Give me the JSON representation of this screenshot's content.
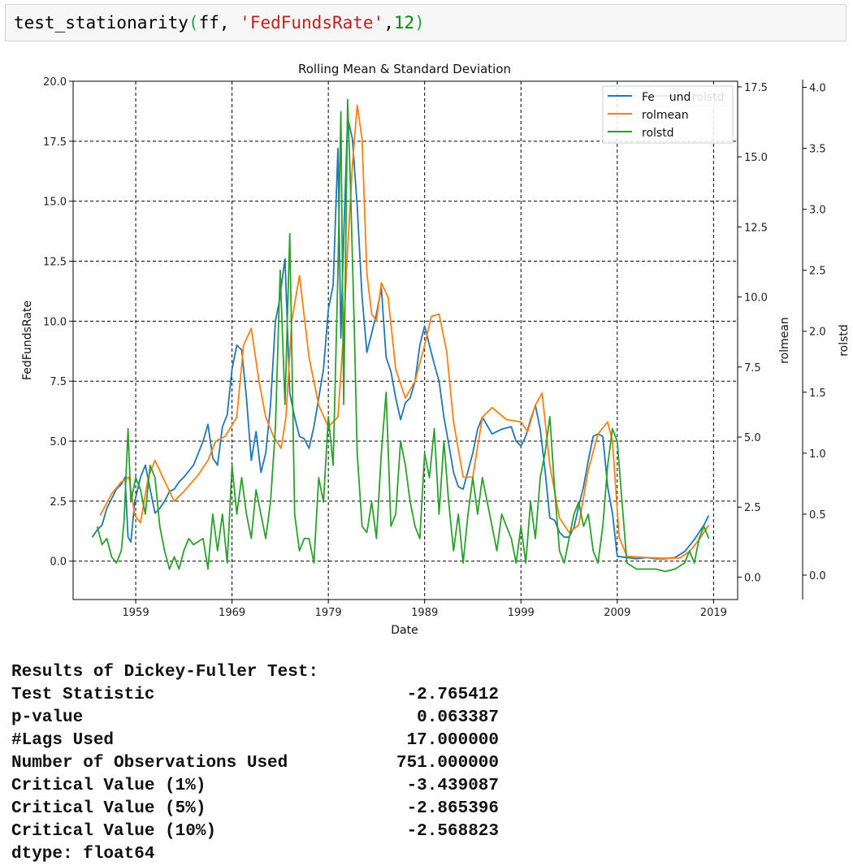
{
  "code": {
    "fn": "test_stationarity",
    "open": "(",
    "args_plain": "ff, ",
    "arg_str": "'FedFundsRate'",
    "comma": ",",
    "arg_num": "12",
    "close": ")"
  },
  "chart_data": {
    "type": "line",
    "title": "Rolling Mean & Standard Deviation",
    "xlabel": "Date",
    "x_ticks": [
      "1959",
      "1969",
      "1979",
      "1989",
      "1999",
      "2009",
      "2019"
    ],
    "xlim": [
      1952.5,
      2021.5
    ],
    "y_axes": [
      {
        "label": "FedFundsRate",
        "lim": [
          -1.6,
          20.0
        ],
        "ticks": [
          "0.0",
          "2.5",
          "5.0",
          "7.5",
          "10.0",
          "12.5",
          "15.0",
          "17.5",
          "20.0"
        ]
      },
      {
        "label": "rolmean",
        "lim": [
          -0.8,
          17.7
        ],
        "ticks": [
          "0.0",
          "2.5",
          "5.0",
          "7.5",
          "10.0",
          "12.5",
          "15.0",
          "17.5"
        ]
      },
      {
        "label": "rolstd",
        "lim": [
          -0.2,
          4.05
        ],
        "ticks": [
          "0.0",
          "0.5",
          "1.0",
          "1.5",
          "2.0",
          "2.5",
          "3.0",
          "3.5",
          "4.0"
        ]
      }
    ],
    "grid": true,
    "legend": [
      {
        "name": "FedFundsRate",
        "color": "#1f77b4",
        "placement": "top-right"
      },
      {
        "name": "rolmean",
        "color": "#ff7f0e",
        "placement": "top-right"
      },
      {
        "name": "rolstd",
        "color": "#2ca02c",
        "placement": "top-right"
      }
    ],
    "legend_overlap_label": "rolstd",
    "legend_overlap_visible": "Fe    und",
    "series": [
      {
        "name": "FedFundsRate",
        "color": "#1f77b4",
        "axis": 0,
        "x": [
          1954.5,
          1955.0,
          1955.5,
          1956.0,
          1956.5,
          1957.0,
          1957.5,
          1957.9,
          1958.2,
          1958.5,
          1958.9,
          1959.5,
          1960.0,
          1960.5,
          1961.0,
          1961.5,
          1962.0,
          1962.5,
          1963.0,
          1963.5,
          1964.0,
          1965.0,
          1966.0,
          1966.5,
          1967.0,
          1967.5,
          1968.0,
          1968.5,
          1969.0,
          1969.5,
          1970.0,
          1970.5,
          1971.0,
          1971.5,
          1972.0,
          1972.5,
          1973.0,
          1973.5,
          1973.9,
          1974.5,
          1975.0,
          1975.5,
          1976.0,
          1976.5,
          1977.0,
          1977.5,
          1978.0,
          1978.5,
          1979.0,
          1979.5,
          1980.0,
          1980.3,
          1980.6,
          1981.0,
          1981.5,
          1982.0,
          1982.5,
          1983.0,
          1983.5,
          1984.0,
          1984.5,
          1985.0,
          1985.5,
          1986.0,
          1986.5,
          1987.0,
          1987.5,
          1988.0,
          1988.5,
          1989.0,
          1989.5,
          1990.0,
          1990.5,
          1991.0,
          1991.5,
          1992.0,
          1992.5,
          1993.0,
          1994.0,
          1994.5,
          1995.0,
          1996.0,
          1997.0,
          1998.0,
          1998.5,
          1999.0,
          1999.5,
          2000.0,
          2000.5,
          2001.0,
          2001.5,
          2002.0,
          2002.5,
          2003.0,
          2003.5,
          2004.0,
          2004.5,
          2005.0,
          2005.5,
          2006.0,
          2006.5,
          2007.0,
          2007.5,
          2008.0,
          2008.5,
          2009.0,
          2010.0,
          2011.0,
          2012.0,
          2013.0,
          2014.0,
          2015.0,
          2016.0,
          2017.0,
          2017.5,
          2018.0,
          2018.5
        ],
        "y": [
          1.0,
          1.3,
          1.5,
          2.2,
          2.6,
          3.0,
          3.2,
          3.5,
          1.0,
          0.8,
          2.5,
          3.5,
          4.0,
          3.0,
          2.0,
          2.2,
          2.5,
          2.9,
          3.0,
          3.3,
          3.5,
          4.0,
          5.0,
          5.7,
          4.3,
          4.0,
          5.6,
          6.1,
          8.0,
          9.0,
          8.8,
          6.8,
          4.2,
          5.4,
          3.7,
          4.5,
          6.5,
          10.0,
          10.8,
          12.6,
          7.0,
          6.0,
          5.2,
          5.1,
          4.7,
          5.6,
          6.8,
          8.0,
          10.5,
          11.5,
          17.2,
          9.3,
          13.5,
          18.5,
          17.6,
          14.8,
          11.0,
          8.7,
          9.5,
          10.3,
          11.4,
          8.5,
          7.9,
          6.8,
          5.9,
          6.6,
          6.8,
          7.5,
          9.0,
          9.8,
          9.0,
          8.2,
          7.5,
          6.0,
          4.9,
          3.7,
          3.1,
          3.0,
          4.5,
          5.5,
          6.0,
          5.3,
          5.5,
          5.6,
          5.0,
          4.8,
          5.2,
          5.9,
          6.5,
          5.5,
          3.8,
          1.8,
          1.7,
          1.2,
          1.0,
          1.0,
          1.4,
          2.3,
          3.1,
          4.2,
          5.2,
          5.3,
          5.2,
          3.1,
          2.0,
          0.2,
          0.15,
          0.1,
          0.15,
          0.1,
          0.1,
          0.15,
          0.4,
          0.9,
          1.2,
          1.5,
          1.9
        ]
      },
      {
        "name": "rolmean",
        "color": "#ff7f0e",
        "axis": 0,
        "x": [
          1955.3,
          1956.5,
          1957.5,
          1958.3,
          1958.9,
          1959.5,
          1960.3,
          1961.0,
          1961.8,
          1963.0,
          1964.0,
          1965.5,
          1966.5,
          1967.3,
          1968.3,
          1969.5,
          1970.2,
          1971.0,
          1971.8,
          1972.5,
          1973.3,
          1974.1,
          1974.6,
          1975.2,
          1976.0,
          1977.0,
          1978.0,
          1979.0,
          1980.0,
          1980.5,
          1981.0,
          1981.5,
          1982.0,
          1982.5,
          1983.0,
          1983.5,
          1984.0,
          1984.5,
          1985.2,
          1986.0,
          1987.0,
          1988.0,
          1989.0,
          1989.7,
          1990.5,
          1991.3,
          1992.0,
          1993.0,
          1994.0,
          1995.0,
          1996.0,
          1997.5,
          1999.0,
          1999.7,
          2000.5,
          2001.2,
          2002.0,
          2003.0,
          2004.0,
          2005.0,
          2006.0,
          2007.0,
          2008.0,
          2008.5,
          2009.2,
          2010.0,
          2012.0,
          2014.0,
          2015.5,
          2016.5,
          2017.5,
          2018.5
        ],
        "y": [
          1.9,
          2.8,
          3.3,
          3.5,
          1.9,
          1.6,
          3.5,
          4.2,
          3.5,
          2.5,
          2.9,
          3.6,
          4.2,
          5.0,
          5.2,
          6.0,
          9.0,
          9.7,
          7.5,
          6.0,
          5.2,
          4.7,
          6.0,
          10.0,
          11.9,
          8.5,
          6.5,
          5.6,
          6.0,
          9.0,
          13.0,
          16.5,
          19.0,
          17.6,
          12.0,
          10.3,
          10.0,
          11.6,
          11.0,
          8.0,
          6.8,
          7.5,
          9.0,
          10.2,
          10.3,
          8.7,
          5.8,
          3.5,
          3.5,
          6.0,
          6.4,
          5.9,
          5.8,
          5.4,
          6.5,
          7.0,
          4.0,
          1.8,
          1.2,
          1.5,
          3.8,
          5.3,
          5.8,
          5.0,
          1.0,
          0.2,
          0.15,
          0.12,
          0.13,
          0.4,
          0.9,
          1.5
        ]
      },
      {
        "name": "rolstd",
        "color": "#2ca02c",
        "axis": 2,
        "x": [
          1955.0,
          1955.5,
          1956.0,
          1956.5,
          1957.0,
          1957.5,
          1957.8,
          1958.2,
          1958.5,
          1959.0,
          1959.5,
          1960.0,
          1960.5,
          1961.0,
          1961.5,
          1962.0,
          1962.5,
          1963.0,
          1963.5,
          1964.0,
          1964.5,
          1965.0,
          1966.0,
          1966.5,
          1967.0,
          1967.5,
          1968.0,
          1968.5,
          1969.0,
          1969.5,
          1970.0,
          1970.5,
          1971.0,
          1971.5,
          1972.0,
          1972.5,
          1973.0,
          1973.5,
          1974.0,
          1974.5,
          1975.0,
          1975.5,
          1976.0,
          1976.5,
          1977.0,
          1977.5,
          1978.0,
          1978.5,
          1979.0,
          1979.5,
          1980.0,
          1980.3,
          1980.6,
          1981.0,
          1981.3,
          1981.7,
          1982.0,
          1982.5,
          1983.0,
          1983.5,
          1984.0,
          1984.5,
          1985.0,
          1985.5,
          1986.0,
          1986.5,
          1987.0,
          1987.5,
          1988.0,
          1988.5,
          1989.0,
          1989.5,
          1990.0,
          1990.5,
          1991.0,
          1991.5,
          1992.0,
          1992.5,
          1993.0,
          1993.5,
          1994.0,
          1994.5,
          1995.0,
          1996.0,
          1996.5,
          1997.0,
          1998.0,
          1998.5,
          1999.0,
          1999.5,
          2000.0,
          2000.5,
          2001.0,
          2001.5,
          2002.0,
          2002.5,
          2003.0,
          2003.5,
          2004.0,
          2004.5,
          2005.0,
          2005.5,
          2006.0,
          2006.5,
          2007.0,
          2007.5,
          2008.0,
          2008.5,
          2009.0,
          2009.5,
          2010.0,
          2011.0,
          2012.0,
          2013.0,
          2014.0,
          2015.0,
          2016.0,
          2016.5,
          2017.0,
          2017.5,
          2018.0,
          2018.5
        ],
        "y": [
          0.4,
          0.25,
          0.3,
          0.15,
          0.1,
          0.2,
          0.45,
          1.2,
          0.6,
          0.8,
          0.7,
          0.5,
          0.9,
          0.8,
          0.4,
          0.2,
          0.05,
          0.15,
          0.05,
          0.2,
          0.3,
          0.25,
          0.3,
          0.05,
          0.5,
          0.2,
          0.5,
          0.1,
          0.9,
          0.5,
          0.8,
          0.5,
          0.3,
          0.7,
          0.5,
          0.3,
          0.6,
          1.2,
          2.5,
          1.4,
          2.8,
          0.5,
          0.2,
          0.3,
          0.3,
          0.1,
          0.8,
          0.6,
          1.3,
          0.9,
          2.5,
          3.8,
          1.4,
          3.9,
          3.2,
          2.0,
          1.0,
          0.4,
          0.35,
          0.6,
          0.3,
          1.0,
          1.5,
          0.4,
          0.5,
          1.1,
          0.9,
          0.6,
          0.4,
          0.3,
          1.0,
          0.8,
          1.2,
          0.5,
          1.1,
          0.6,
          0.2,
          0.5,
          0.1,
          0.5,
          0.8,
          0.5,
          0.8,
          0.4,
          0.2,
          0.5,
          0.3,
          0.1,
          0.4,
          0.1,
          0.6,
          0.3,
          0.8,
          1.0,
          1.3,
          0.7,
          0.2,
          0.1,
          0.3,
          0.5,
          0.6,
          0.4,
          0.5,
          0.2,
          0.1,
          0.4,
          0.9,
          1.2,
          1.1,
          0.6,
          0.1,
          0.05,
          0.05,
          0.05,
          0.03,
          0.05,
          0.1,
          0.2,
          0.1,
          0.3,
          0.4,
          0.3
        ]
      }
    ]
  },
  "df_title": "Results of Dickey-Fuller Test:",
  "df_rows": [
    {
      "label": "Test Statistic",
      "value": "-2.765412"
    },
    {
      "label": "p-value",
      "value": "0.063387"
    },
    {
      "label": "#Lags Used",
      "value": "17.000000"
    },
    {
      "label": "Number of Observations Used",
      "value": "751.000000"
    },
    {
      "label": "Critical Value (1%)",
      "value": "-3.439087"
    },
    {
      "label": "Critical Value (5%)",
      "value": "-2.865396"
    },
    {
      "label": "Critical Value (10%)",
      "value": "-2.568823"
    }
  ],
  "df_dtype": "dtype: float64"
}
